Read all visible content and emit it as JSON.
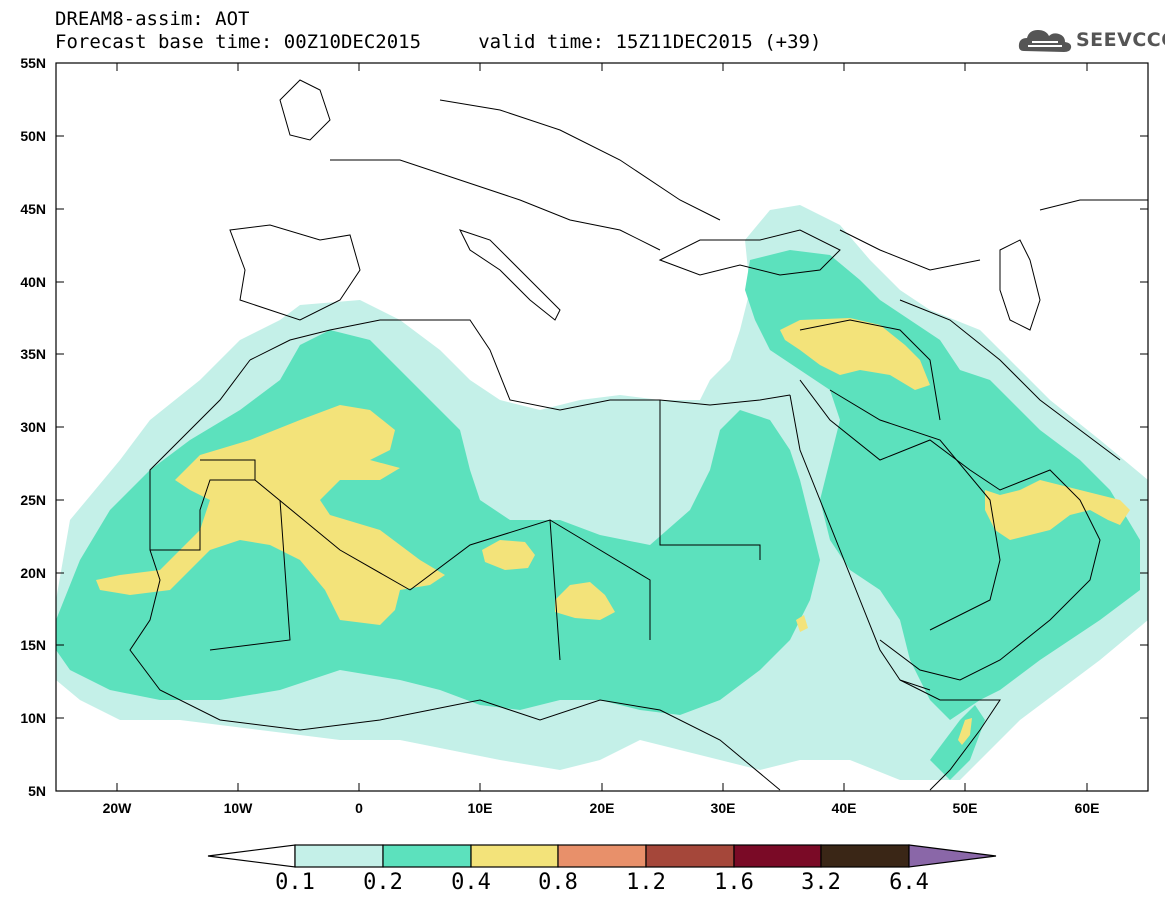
{
  "title": {
    "line1": "DREAM8-assim: AOT",
    "line2": "Forecast base time: 00Z10DEC2015     valid time: 15Z11DEC2015 (+39)"
  },
  "logo": {
    "text": "SEEVCCC",
    "icon": "cloud-icon"
  },
  "map": {
    "lon_range": [
      -25,
      65
    ],
    "lat_range": [
      5,
      55
    ],
    "lat_ticks": [
      "55N",
      "50N",
      "45N",
      "40N",
      "35N",
      "30N",
      "25N",
      "20N",
      "15N",
      "10N",
      "5N"
    ],
    "lon_ticks": [
      "20W",
      "10W",
      "0",
      "10E",
      "20E",
      "30E",
      "40E",
      "50E",
      "60E"
    ],
    "field": "AOT",
    "colors": {
      "c01": "#c4f0e8",
      "c02": "#5ce1bd",
      "c04": "#f3e37a"
    }
  },
  "colorbar": {
    "labels": [
      "0.1",
      "0.2",
      "0.4",
      "0.8",
      "1.2",
      "1.6",
      "3.2",
      "6.4"
    ],
    "colors": [
      "#c4f0e8",
      "#5ce1bd",
      "#f3e37a",
      "#e8906a",
      "#a5473a",
      "#7a0a26",
      "#3a2616",
      "#8a67a8"
    ]
  }
}
